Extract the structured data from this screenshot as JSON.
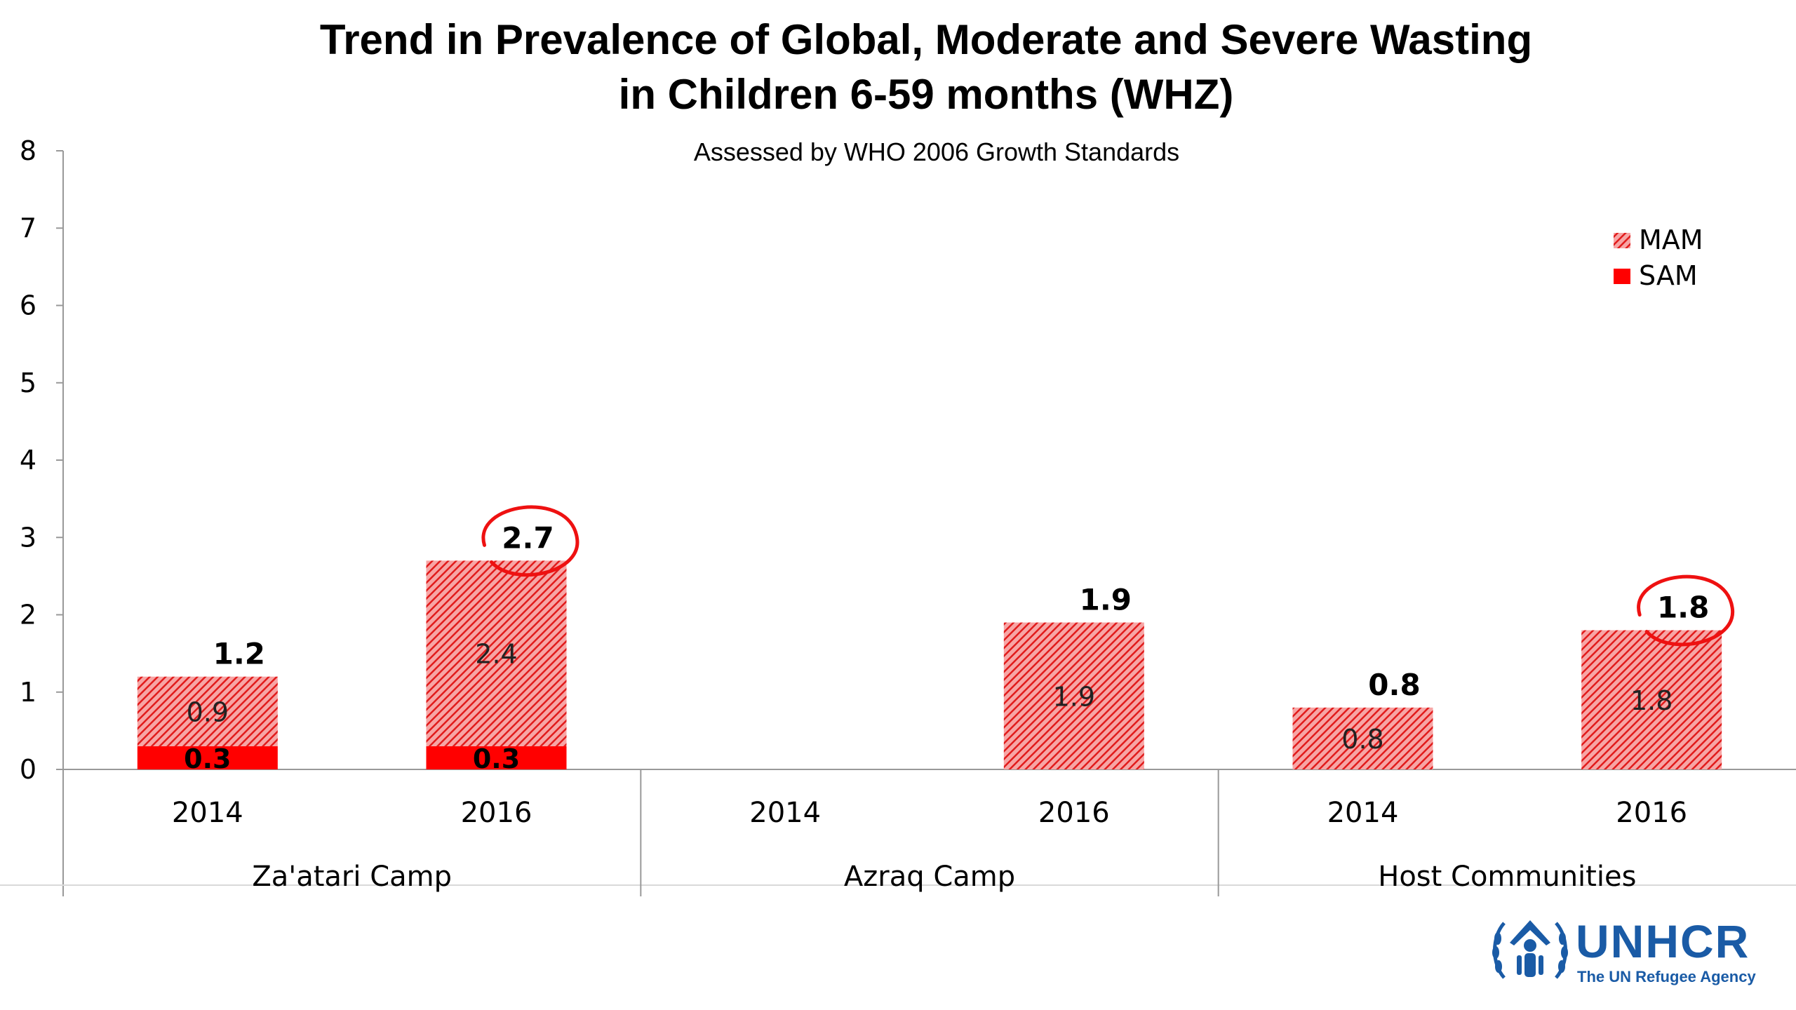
{
  "chart_data": {
    "type": "bar",
    "stacked": true,
    "title": [
      "Trend in Prevalence of Global, Moderate and Severe Wasting",
      "in Children 6-59 months (WHZ)"
    ],
    "subtitle": "Assessed by WHO 2006 Growth Standards",
    "ylim": [
      0,
      8
    ],
    "yticks": [
      "0",
      "1",
      "2",
      "3",
      "4",
      "5",
      "6",
      "7",
      "8"
    ],
    "groups": [
      "Za'atari Camp",
      "Azraq Camp",
      "Host Communities"
    ],
    "categories": [
      {
        "group": "Za'atari Camp",
        "year": "2014"
      },
      {
        "group": "Za'atari Camp",
        "year": "2016"
      },
      {
        "group": "Azraq Camp",
        "year": "2014"
      },
      {
        "group": "Azraq Camp",
        "year": "2016"
      },
      {
        "group": "Host Communities",
        "year": "2014"
      },
      {
        "group": "Host Communities",
        "year": "2016"
      }
    ],
    "series": [
      {
        "name": "SAM",
        "color": "#ff0000",
        "pattern": "solid",
        "values": [
          0.3,
          0.3,
          null,
          null,
          null,
          null
        ],
        "labels": [
          "0.3",
          "0.3",
          "",
          "",
          "",
          ""
        ]
      },
      {
        "name": "MAM",
        "color": "#ee2222",
        "pattern": "hatched",
        "values": [
          0.9,
          2.4,
          null,
          1.9,
          0.8,
          1.8
        ],
        "labels": [
          "0.9",
          "2.4",
          "",
          "1.9",
          "0.8",
          "1.8"
        ]
      }
    ],
    "totals": [
      "1.2",
      "2.7",
      "",
      "1.9",
      "0.8",
      "1.8"
    ],
    "highlighted_totals": [
      1,
      5
    ],
    "legend": {
      "position": "top-right",
      "items": [
        "MAM",
        "SAM"
      ]
    },
    "grid": false
  },
  "logo": {
    "word": "UNHCR",
    "tagline": "The UN Refugee Agency",
    "color": "#1a5ba6"
  }
}
